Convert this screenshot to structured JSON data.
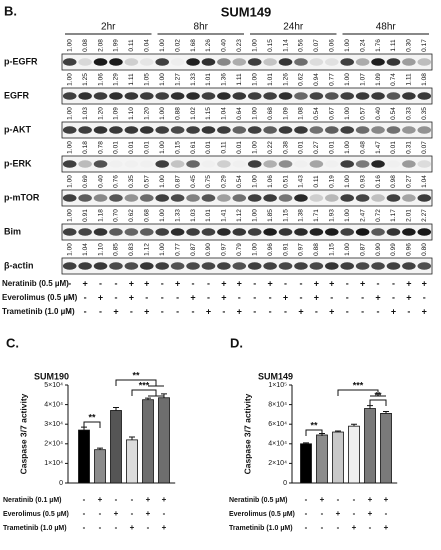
{
  "panel_b": {
    "label": "B.",
    "title": "SUM149",
    "time_points": [
      "2hr",
      "8hr",
      "24hr",
      "48hr"
    ],
    "rows": [
      {
        "name": "p-EGFR",
        "values": [
          1,
          0.08,
          2.08,
          1.99,
          0.11,
          0.04,
          1,
          0.02,
          1.68,
          1.26,
          0.4,
          0.23,
          1,
          0.15,
          1.14,
          0.56,
          0.07,
          0.06,
          1,
          0.24,
          1.76,
          1.11,
          0.3,
          0.17
        ],
        "value_labels": [
          "1.00",
          "0.08",
          "2.08",
          "1.99",
          "0.11",
          "0.04",
          "1.00",
          "0.02",
          "1.68",
          "1.26",
          "0.40",
          "0.23",
          "1.00",
          "0.15",
          "1.14",
          "0.56",
          "0.07",
          "0.06",
          "1.00",
          "0.24",
          "1.76",
          "1.11",
          "0.30",
          "0.17"
        ]
      },
      {
        "name": "EGFR",
        "values": [
          1,
          1.25,
          1.06,
          1.29,
          1.11,
          1.05,
          1,
          1.27,
          1.33,
          1.01,
          1.36,
          1.11,
          1,
          1.01,
          1.26,
          0.62,
          0.94,
          0.77,
          1,
          1.07,
          1.09,
          0.74,
          1.11,
          1.08
        ],
        "value_labels": [
          "1.00",
          "1.25",
          "1.06",
          "1.29",
          "1.11",
          "1.05",
          "1.00",
          "1.27",
          "1.33",
          "1.01",
          "1.36",
          "1.11",
          "1.00",
          "1.01",
          "1.26",
          "0.62",
          "0.94",
          "0.77",
          "1.00",
          "1.07",
          "1.09",
          "0.74",
          "1.11",
          "1.08"
        ]
      },
      {
        "name": "p-AKT",
        "values": [
          1,
          1.03,
          1.2,
          1.09,
          1.1,
          1.2,
          1,
          0.88,
          1.02,
          1.15,
          1.04,
          0.64,
          1,
          0.68,
          1.09,
          1.08,
          0.54,
          0.67,
          1,
          0.57,
          0.4,
          0.54,
          0.33,
          0.35
        ],
        "value_labels": [
          "1.00",
          "1.03",
          "1.20",
          "1.09",
          "1.10",
          "1.20",
          "1.00",
          "0.88",
          "1.02",
          "1.15",
          "1.04",
          "0.64",
          "1.00",
          "0.68",
          "1.09",
          "1.08",
          "0.54",
          "0.67",
          "1.00",
          "0.57",
          "0.40",
          "0.54",
          "0.33",
          "0.35"
        ]
      },
      {
        "name": "p-ERK",
        "values": [
          1,
          0.18,
          0.78,
          0.01,
          0.01,
          0.01,
          1,
          0.15,
          0.61,
          0.01,
          0.11,
          0.01,
          1,
          0.22,
          0.38,
          0.01,
          0.27,
          0.01,
          1,
          0.48,
          1.47,
          0.01,
          0.31,
          0.07
        ],
        "value_labels": [
          "1.00",
          "0.18",
          "0.78",
          "0.01",
          "0.01",
          "0.01",
          "1.00",
          "0.15",
          "0.61",
          "0.01",
          "0.11",
          "0.01",
          "1.00",
          "0.22",
          "0.38",
          "0.01",
          "0.27",
          "0.01",
          "1.00",
          "0.48",
          "1.47",
          "0.01",
          "0.31",
          "0.07"
        ]
      },
      {
        "name": "p-mTOR",
        "values": [
          1,
          0.69,
          0.4,
          0.76,
          0.35,
          0.57,
          1,
          0.87,
          0.45,
          0.75,
          0.29,
          0.54,
          1,
          1.06,
          0.51,
          1.43,
          0.11,
          0.19,
          1,
          0.93,
          0.16,
          0.98,
          0.27,
          1.04
        ],
        "value_labels": [
          "1.00",
          "0.69",
          "0.40",
          "0.76",
          "0.35",
          "0.57",
          "1.00",
          "0.87",
          "0.45",
          "0.75",
          "0.29",
          "0.54",
          "1.00",
          "1.06",
          "0.51",
          "1.43",
          "0.11",
          "0.19",
          "1.00",
          "0.93",
          "0.16",
          "0.98",
          "0.27",
          "1.04"
        ]
      },
      {
        "name": "Bim",
        "values": [
          1,
          0.91,
          1.18,
          0.7,
          0.62,
          0.68,
          1,
          1.33,
          1.03,
          1.01,
          1.41,
          1.12,
          1,
          1.85,
          1.15,
          1.38,
          1.71,
          1.93,
          1,
          2.47,
          0.72,
          1.17,
          2.01,
          2.27
        ],
        "value_labels": [
          "1.00",
          "0.91",
          "1.18",
          "0.70",
          "0.62",
          "0.68",
          "1.00",
          "1.33",
          "1.03",
          "1.01",
          "1.41",
          "1.12",
          "1.00",
          "1.85",
          "1.15",
          "1.38",
          "1.71",
          "1.93",
          "1.00",
          "2.47",
          "0.72",
          "1.17",
          "2.01",
          "2.27"
        ]
      },
      {
        "name": "β-actin",
        "values": [
          1,
          1.04,
          1.1,
          0.85,
          0.83,
          1.12,
          1,
          0.77,
          0.87,
          0.9,
          0.97,
          0.79,
          1,
          0.96,
          0.91,
          0.97,
          0.88,
          1.15,
          1,
          0.87,
          0.9,
          0.99,
          0.96,
          0.8
        ],
        "value_labels": [
          "1.00",
          "1.04",
          "1.10",
          "0.85",
          "0.83",
          "1.12",
          "1.00",
          "0.77",
          "0.87",
          "0.90",
          "0.97",
          "0.79",
          "1.00",
          "0.96",
          "0.91",
          "0.97",
          "0.88",
          "1.15",
          "1.00",
          "0.87",
          "0.90",
          "0.99",
          "0.96",
          "0.80"
        ]
      }
    ],
    "treatments": [
      {
        "label": "Neratinib (0.5 µM)",
        "signs": [
          "-",
          "+",
          "-",
          "-",
          "+",
          "+",
          "-",
          "+",
          "-",
          "-",
          "+",
          "+",
          "-",
          "+",
          "-",
          "-",
          "+",
          "+",
          "-",
          "+",
          "-",
          "-",
          "+",
          "+"
        ]
      },
      {
        "label": "Everolimus (0.5 µM)",
        "signs": [
          "-",
          "-",
          "+",
          "-",
          "+",
          "-",
          "-",
          "-",
          "+",
          "-",
          "+",
          "-",
          "-",
          "-",
          "+",
          "-",
          "+",
          "-",
          "-",
          "-",
          "+",
          "-",
          "+",
          "-"
        ]
      },
      {
        "label": "Trametinib (1.0 µM)",
        "signs": [
          "-",
          "-",
          "-",
          "+",
          "-",
          "+",
          "-",
          "-",
          "-",
          "+",
          "-",
          "+",
          "-",
          "-",
          "-",
          "+",
          "-",
          "+",
          "-",
          "-",
          "-",
          "+",
          "-",
          "+"
        ]
      }
    ]
  },
  "chart_data": [
    {
      "type": "bar",
      "panel": "C.",
      "title": "SUM190",
      "y_label": "Caspase 3/7 activity",
      "values": [
        27000,
        17000,
        37000,
        22000,
        42500,
        43500
      ],
      "errors": [
        1500,
        800,
        1500,
        1500,
        800,
        2000
      ],
      "colors": [
        "#000000",
        "#8c8c8c",
        "#555555",
        "#dcdcdc",
        "#6e6e6e",
        "#6e6e6e"
      ],
      "ylim": [
        0,
        50000
      ],
      "yticks": [
        0,
        {
          "value": 10000,
          "label": "1×10⁴"
        },
        {
          "value": 20000,
          "label": "2×10⁴"
        },
        {
          "value": 30000,
          "label": "3×10⁴"
        },
        {
          "value": 40000,
          "label": "4×10⁴"
        },
        {
          "value": 50000,
          "label": "5×10⁴"
        }
      ],
      "annotations": [
        "**",
        "**",
        "***"
      ],
      "treatments": [
        {
          "label": "Neratinib (0.1 µM)",
          "signs": [
            "-",
            "+",
            "-",
            "-",
            "+",
            "+"
          ]
        },
        {
          "label": "Everolimus (0.5 µM)",
          "signs": [
            "-",
            "-",
            "+",
            "-",
            "+",
            "-"
          ]
        },
        {
          "label": "Trametinib (1.0 µM)",
          "signs": [
            "-",
            "-",
            "-",
            "+",
            "-",
            "+"
          ]
        }
      ]
    },
    {
      "type": "bar",
      "panel": "D.",
      "title": "SUM149",
      "y_label": "Caspase 3/7 activity",
      "values": [
        40000,
        49000,
        52000,
        58000,
        76000,
        71000
      ],
      "errors": [
        1000,
        1500,
        1000,
        2000,
        3000,
        2000
      ],
      "colors": [
        "#000000",
        "#8c8c8c",
        "#c8c8c8",
        "#eeeeee",
        "#7a7a7a",
        "#7a7a7a"
      ],
      "ylim": [
        0,
        100000
      ],
      "yticks": [
        0,
        {
          "value": 20000,
          "label": "2×10⁴"
        },
        {
          "value": 40000,
          "label": "4×10⁴"
        },
        {
          "value": 60000,
          "label": "6×10⁴"
        },
        {
          "value": 80000,
          "label": "8×10⁴"
        },
        {
          "value": 100000,
          "label": "1×10⁵"
        }
      ],
      "annotations": [
        "**",
        "***",
        "**"
      ],
      "treatments": [
        {
          "label": "Neratinib (0.5 µM)",
          "signs": [
            "-",
            "+",
            "-",
            "-",
            "+",
            "+"
          ]
        },
        {
          "label": "Everolimus (0.5 µM)",
          "signs": [
            "-",
            "-",
            "+",
            "-",
            "+",
            "-"
          ]
        },
        {
          "label": "Trametinib (1.0 µM)",
          "signs": [
            "-",
            "-",
            "-",
            "+",
            "-",
            "+"
          ]
        }
      ]
    }
  ]
}
